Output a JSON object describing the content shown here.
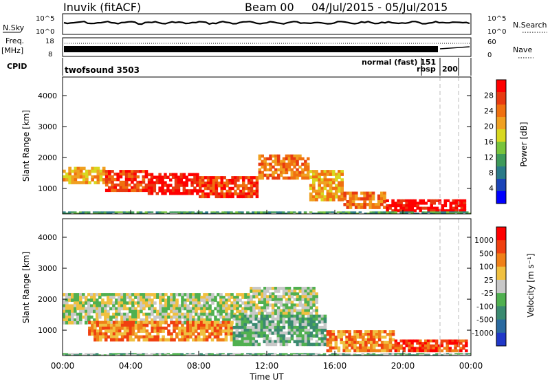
{
  "header": {
    "station": "Inuvik (fitACF)",
    "beam": "Beam 00",
    "date_range": "04/Jul/2015 - 05/Jul/2015"
  },
  "panels": {
    "nsky": {
      "label": "N.Sky",
      "tick_top": "10^5",
      "tick_bottom": "10^0",
      "right_tick_top": "10^5",
      "right_tick_bottom": "10^0",
      "right_label": "N.Search"
    },
    "freq": {
      "label_line1": "Freq.",
      "label_line2": "[MHz]",
      "tick_top": "18",
      "tick_bottom": "8",
      "right_tick_top": "60",
      "right_tick_bottom": "0",
      "right_label": "Nave"
    },
    "cpid": {
      "label": "CPID",
      "programs": [
        "twofsound 3503",
        "normal (fast) 151",
        "rbsp",
        "200"
      ]
    }
  },
  "chart_data": [
    {
      "type": "heatmap",
      "name": "power-panel",
      "xlabel": "",
      "ylabel": "Slant Range [km]",
      "y_ticks": [
        1000,
        2000,
        3000,
        4000
      ],
      "ylim": [
        180,
        4600
      ],
      "colorbar_label": "Power [dB]",
      "colorbar_ticks": [
        "4",
        "8",
        "12",
        "16",
        "20",
        "24",
        "28"
      ],
      "colors": [
        "#0000ff",
        "#1a44b8",
        "#2a7a88",
        "#3e9a5a",
        "#78c43c",
        "#d8d820",
        "#f0a020",
        "#f07010",
        "#e83a10",
        "#ff0000"
      ],
      "bands": [
        {
          "x": [
            0.0,
            2.5
          ],
          "y": [
            1150,
            1700
          ],
          "level": 6
        },
        {
          "x": [
            2.5,
            5.0
          ],
          "y": [
            900,
            1600
          ],
          "level": 8
        },
        {
          "x": [
            5.0,
            8.0
          ],
          "y": [
            800,
            1500
          ],
          "level": 9
        },
        {
          "x": [
            8.0,
            11.5
          ],
          "y": [
            700,
            1400
          ],
          "level": 8
        },
        {
          "x": [
            11.5,
            14.5
          ],
          "y": [
            1300,
            2100
          ],
          "level": 7
        },
        {
          "x": [
            14.5,
            16.5
          ],
          "y": [
            600,
            1600
          ],
          "level": 6
        },
        {
          "x": [
            16.5,
            19.0
          ],
          "y": [
            350,
            900
          ],
          "level": 7
        },
        {
          "x": [
            19.0,
            23.7
          ],
          "y": [
            250,
            650
          ],
          "level": 9
        },
        {
          "x": [
            0.0,
            24.0
          ],
          "y": [
            180,
            260
          ],
          "level": 3
        }
      ]
    },
    {
      "type": "heatmap",
      "name": "velocity-panel",
      "xlabel": "Time UT",
      "ylabel": "Slant Range [km]",
      "x_ticks": [
        "00:00",
        "04:00",
        "08:00",
        "12:00",
        "16:00",
        "20:00",
        "00:00"
      ],
      "y_ticks": [
        1000,
        2000,
        3000,
        4000
      ],
      "ylim": [
        180,
        4600
      ],
      "colorbar_label": "Velocity [m s⁻¹]",
      "colorbar_ticks": [
        "1000",
        "500",
        "100",
        "25",
        "-25",
        "-100",
        "-500",
        "-1000"
      ],
      "colors": [
        "#2038c8",
        "#2a6aa0",
        "#3a8a70",
        "#50b050",
        "#c8c8c8",
        "#f0c040",
        "#f08018",
        "#f04010",
        "#ff0000"
      ],
      "bands": [
        {
          "x": [
            0.0,
            11.0
          ],
          "y": [
            1200,
            2200
          ],
          "level": 4
        },
        {
          "x": [
            11.0,
            15.0
          ],
          "y": [
            1500,
            2400
          ],
          "level": 4
        },
        {
          "x": [
            1.5,
            10.0
          ],
          "y": [
            650,
            1300
          ],
          "level": 6
        },
        {
          "x": [
            10.0,
            15.5
          ],
          "y": [
            500,
            1500
          ],
          "level": 3
        },
        {
          "x": [
            15.5,
            19.5
          ],
          "y": [
            300,
            1000
          ],
          "level": 6
        },
        {
          "x": [
            19.5,
            23.8
          ],
          "y": [
            300,
            700
          ],
          "level": 7
        },
        {
          "x": [
            0.0,
            24.0
          ],
          "y": [
            180,
            260
          ],
          "level": 3
        }
      ]
    }
  ]
}
